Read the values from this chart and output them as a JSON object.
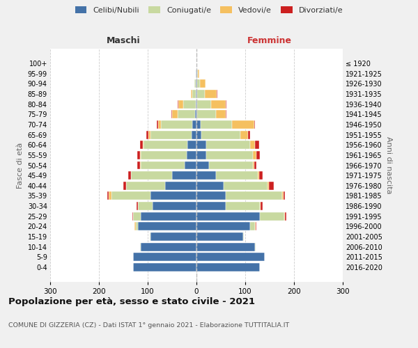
{
  "age_groups": [
    "0-4",
    "5-9",
    "10-14",
    "15-19",
    "20-24",
    "25-29",
    "30-34",
    "35-39",
    "40-44",
    "45-49",
    "50-54",
    "55-59",
    "60-64",
    "65-69",
    "70-74",
    "75-79",
    "80-84",
    "85-89",
    "90-94",
    "95-99",
    "100+"
  ],
  "birth_years": [
    "2016-2020",
    "2011-2015",
    "2006-2010",
    "2001-2005",
    "1996-2000",
    "1991-1995",
    "1986-1990",
    "1981-1985",
    "1976-1980",
    "1971-1975",
    "1966-1970",
    "1961-1965",
    "1956-1960",
    "1951-1955",
    "1946-1950",
    "1941-1945",
    "1936-1940",
    "1931-1935",
    "1926-1930",
    "1921-1925",
    "≤ 1920"
  ],
  "maschi": {
    "celibi": [
      130,
      130,
      115,
      95,
      120,
      115,
      90,
      95,
      65,
      50,
      25,
      20,
      18,
      10,
      8,
      3,
      2,
      1,
      1,
      1,
      0
    ],
    "coniugati": [
      0,
      0,
      1,
      1,
      5,
      15,
      30,
      80,
      80,
      85,
      90,
      95,
      90,
      85,
      65,
      35,
      25,
      8,
      3,
      1,
      0
    ],
    "vedovi": [
      0,
      0,
      0,
      0,
      2,
      0,
      0,
      5,
      0,
      0,
      1,
      1,
      2,
      3,
      5,
      12,
      10,
      2,
      1,
      0,
      0
    ],
    "divorziati": [
      0,
      0,
      0,
      0,
      0,
      1,
      3,
      3,
      5,
      5,
      5,
      5,
      6,
      5,
      3,
      1,
      1,
      1,
      0,
      0,
      0
    ]
  },
  "femmine": {
    "nubili": [
      130,
      140,
      120,
      95,
      110,
      130,
      60,
      60,
      55,
      40,
      25,
      20,
      20,
      10,
      8,
      2,
      2,
      2,
      2,
      1,
      0
    ],
    "coniugate": [
      0,
      0,
      1,
      2,
      10,
      50,
      70,
      115,
      90,
      85,
      90,
      95,
      90,
      80,
      65,
      38,
      28,
      15,
      5,
      2,
      0
    ],
    "vedove": [
      0,
      0,
      0,
      0,
      2,
      2,
      2,
      3,
      3,
      3,
      3,
      8,
      10,
      15,
      45,
      20,
      30,
      25,
      12,
      3,
      0
    ],
    "divorziate": [
      0,
      0,
      0,
      0,
      1,
      2,
      3,
      3,
      10,
      8,
      5,
      7,
      8,
      5,
      2,
      1,
      1,
      1,
      0,
      0,
      0
    ]
  },
  "colors": {
    "celibi": "#4472a8",
    "coniugati": "#c8d9a0",
    "vedovi": "#f5c060",
    "divorziati": "#cc2020"
  },
  "title": "Popolazione per età, sesso e stato civile - 2021",
  "subtitle": "COMUNE DI GIZZERIA (CZ) - Dati ISTAT 1° gennaio 2021 - Elaborazione TUTTITALIA.IT",
  "ylabel_left": "Fasce di età",
  "ylabel_right": "Anni di nascita",
  "xlabel_left": "Maschi",
  "xlabel_right": "Femmine",
  "xlim": 300,
  "bg_color": "#f0f0f0",
  "plot_bg": "#ffffff"
}
